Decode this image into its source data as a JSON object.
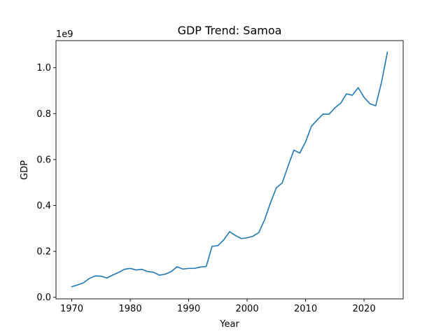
{
  "chart_data": {
    "type": "line",
    "title": "GDP Trend: Samoa",
    "xlabel": "Year",
    "ylabel": "GDP",
    "y_offset_label": "1e9",
    "xlim": [
      1967.3,
      2026.7
    ],
    "ylim": [
      -0.007,
      1.118
    ],
    "x_ticks": [
      1970,
      1980,
      1990,
      2000,
      2010,
      2020
    ],
    "x_tick_labels": [
      "1970",
      "1980",
      "1990",
      "2000",
      "2010",
      "2020"
    ],
    "y_ticks": [
      0.0,
      0.2,
      0.4,
      0.6,
      0.8,
      1.0
    ],
    "y_tick_labels": [
      "0.0",
      "0.2",
      "0.4",
      "0.6",
      "0.8",
      "1.0"
    ],
    "grid": false,
    "line_color": "#1f77b4",
    "series": [
      {
        "x": [
          1970,
          1971,
          1972,
          1973,
          1974,
          1975,
          1976,
          1977,
          1978,
          1979,
          1980,
          1981,
          1982,
          1983,
          1984,
          1985,
          1986,
          1987,
          1988,
          1989,
          1990,
          1991,
          1992,
          1993,
          1994,
          1995,
          1996,
          1997,
          1998,
          1999,
          2000,
          2001,
          2002,
          2003,
          2004,
          2005,
          2006,
          2007,
          2008,
          2009,
          2010,
          2011,
          2012,
          2013,
          2014,
          2015,
          2016,
          2017,
          2018,
          2019,
          2020,
          2021,
          2022,
          2023,
          2024
        ],
        "values": [
          0.046,
          0.054,
          0.063,
          0.082,
          0.093,
          0.092,
          0.084,
          0.097,
          0.108,
          0.122,
          0.126,
          0.119,
          0.122,
          0.112,
          0.109,
          0.096,
          0.101,
          0.112,
          0.133,
          0.123,
          0.126,
          0.126,
          0.132,
          0.134,
          0.222,
          0.225,
          0.25,
          0.286,
          0.269,
          0.256,
          0.259,
          0.266,
          0.282,
          0.338,
          0.412,
          0.477,
          0.498,
          0.571,
          0.641,
          0.628,
          0.677,
          0.745,
          0.773,
          0.798,
          0.797,
          0.825,
          0.845,
          0.886,
          0.88,
          0.913,
          0.871,
          0.843,
          0.834,
          0.938,
          1.068
        ]
      }
    ]
  }
}
